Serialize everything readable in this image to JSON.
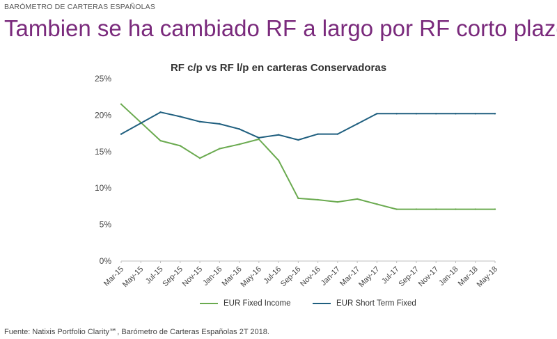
{
  "kicker": "BARÓMETRO DE CARTERAS ESPAÑOLAS",
  "headline": "Tambien se ha cambiado RF a largo por RF corto plazo",
  "source": {
    "label": "Fuente:",
    "text": "Natixis Portfolio Clarity℠, Barómetro de Carteras Españolas 2T 2018."
  },
  "chart_data": {
    "type": "line",
    "title": "RF c/p vs RF l/p en carteras Conservadoras",
    "xlabel": "",
    "ylabel": "",
    "categories": [
      "Mar-15",
      "May-15",
      "Jul-15",
      "Sep-15",
      "Nov-15",
      "Jan-16",
      "Mar-16",
      "May-16",
      "Jul-16",
      "Sep-16",
      "Nov-16",
      "Jan-17",
      "Mar-17",
      "May-17",
      "Jul-17",
      "Sep-17",
      "Nov-17",
      "Jan-18",
      "Mar-18",
      "May-18"
    ],
    "x_points": [
      "Mar-15",
      "Jul-15",
      "Sep-15",
      "Nov-15",
      "Jan-16",
      "Mar-16",
      "May-16",
      "Jul-16",
      "Sep-16",
      "Nov-16",
      "Jan-17",
      "Mar-17",
      "May-17",
      "Jul-17",
      "Sep-17",
      "Nov-17",
      "Jan-18",
      "Mar-18",
      "May-18"
    ],
    "y_ticks": [
      "0%",
      "5%",
      "10%",
      "15%",
      "20%",
      "25%"
    ],
    "ylim": [
      0,
      25
    ],
    "grid": false,
    "legend_position": "bottom",
    "series": [
      {
        "name": "EUR Fixed Income",
        "color": "#6aaa4f",
        "x": [
          "Mar-15",
          "Jul-15",
          "Sep-15",
          "Nov-15",
          "Jan-16",
          "Mar-16",
          "May-16",
          "Jul-16",
          "Sep-16",
          "Nov-16",
          "Jan-17",
          "Mar-17",
          "May-17",
          "Jul-17",
          "Sep-17",
          "Nov-17",
          "Jan-18",
          "Mar-18",
          "May-18"
        ],
        "values": [
          21.5,
          16.5,
          15.8,
          14.1,
          15.4,
          16.0,
          16.7,
          13.8,
          8.6,
          8.4,
          8.1,
          8.5,
          7.8,
          7.1,
          7.1,
          7.1,
          7.1,
          7.1,
          7.1
        ]
      },
      {
        "name": "EUR Short Term Fixed",
        "color": "#1f5f7f",
        "x": [
          "Mar-15",
          "Jul-15",
          "Sep-15",
          "Nov-15",
          "Jan-16",
          "Mar-16",
          "May-16",
          "Jul-16",
          "Sep-16",
          "Nov-16",
          "Jan-17",
          "Mar-17",
          "May-17",
          "Jul-17",
          "Sep-17",
          "Nov-17",
          "Jan-18",
          "Mar-18",
          "May-18"
        ],
        "values": [
          17.4,
          20.4,
          19.8,
          19.1,
          18.8,
          18.1,
          16.9,
          17.3,
          16.6,
          17.4,
          17.4,
          18.8,
          20.2,
          20.2,
          20.2,
          20.2,
          20.2,
          20.2,
          20.2
        ]
      }
    ]
  }
}
